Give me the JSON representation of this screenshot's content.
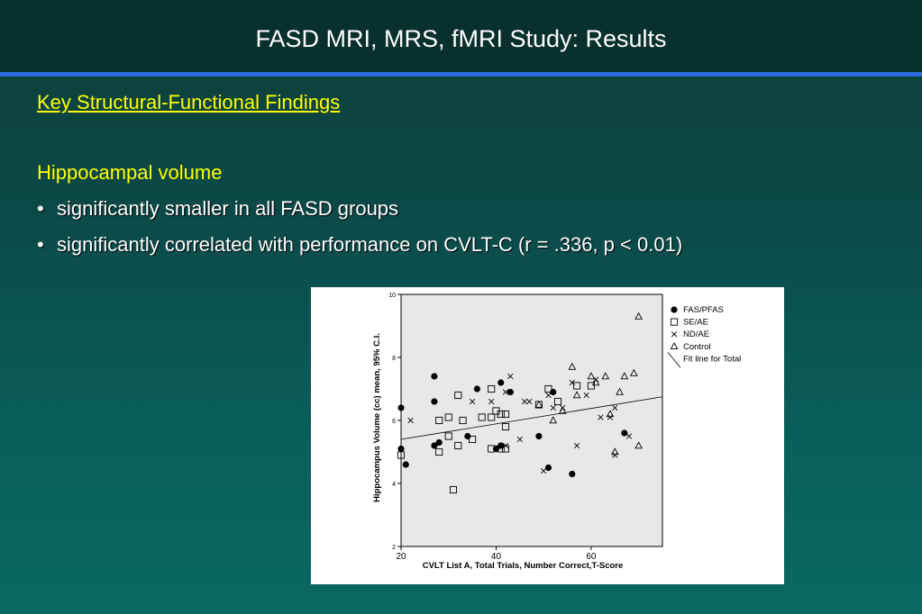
{
  "slide": {
    "title": "FASD MRI, MRS, fMRI Study: Results",
    "subheading": "Key Structural-Functional Findings",
    "section_title": "Hippocampal volume",
    "bullets": [
      "significantly smaller in all FASD groups",
      "significantly correlated with performance on CVLT-C   (r = .336, p < 0.01)"
    ],
    "bullet_char": "•"
  },
  "chart_data": {
    "type": "scatter",
    "xlabel": "CVLT List A, Total Trials, Number Correct,T-Score",
    "ylabel": "Hippocampus Volume (cc) mean, 95% C.I.",
    "xlim": [
      20,
      75
    ],
    "ylim": [
      2,
      10
    ],
    "xticks": [
      20,
      40,
      60
    ],
    "yticks": [
      2,
      4,
      6,
      8,
      10
    ],
    "grid": false,
    "legend_position": "right",
    "fit_line": {
      "name": "Fit line for Total",
      "x": [
        20,
        75
      ],
      "y": [
        5.4,
        6.75
      ]
    },
    "series": [
      {
        "name": "FAS/PFAS",
        "marker": "filled-circle",
        "points": [
          [
            20,
            6.4
          ],
          [
            20,
            5.1
          ],
          [
            21,
            4.6
          ],
          [
            27,
            7.4
          ],
          [
            27,
            6.6
          ],
          [
            27,
            5.2
          ],
          [
            28,
            5.3
          ],
          [
            34,
            5.5
          ],
          [
            36,
            7.0
          ],
          [
            40,
            5.1
          ],
          [
            41,
            5.2
          ],
          [
            41,
            7.2
          ],
          [
            43,
            6.9
          ],
          [
            49,
            5.5
          ],
          [
            51,
            4.5
          ],
          [
            52,
            6.9
          ],
          [
            56,
            4.3
          ],
          [
            67,
            5.6
          ]
        ]
      },
      {
        "name": "SE/AE",
        "marker": "open-square",
        "points": [
          [
            20,
            4.9
          ],
          [
            28,
            6.0
          ],
          [
            28,
            5.0
          ],
          [
            30,
            6.1
          ],
          [
            30,
            5.5
          ],
          [
            31,
            3.8
          ],
          [
            32,
            6.8
          ],
          [
            32,
            5.2
          ],
          [
            33,
            6.0
          ],
          [
            35,
            5.4
          ],
          [
            37,
            6.1
          ],
          [
            39,
            6.1
          ],
          [
            39,
            7.0
          ],
          [
            39,
            5.1
          ],
          [
            40,
            6.3
          ],
          [
            41,
            6.2
          ],
          [
            41,
            5.1
          ],
          [
            42,
            5.8
          ],
          [
            42,
            6.2
          ],
          [
            42,
            5.1
          ],
          [
            49,
            6.5
          ],
          [
            51,
            7.0
          ],
          [
            53,
            6.6
          ],
          [
            57,
            7.1
          ],
          [
            60,
            7.1
          ]
        ]
      },
      {
        "name": "ND/AE",
        "marker": "x",
        "points": [
          [
            22,
            6.0
          ],
          [
            35,
            6.6
          ],
          [
            39,
            6.6
          ],
          [
            42,
            6.9
          ],
          [
            42,
            5.2
          ],
          [
            43,
            7.4
          ],
          [
            45,
            5.4
          ],
          [
            46,
            6.6
          ],
          [
            47,
            6.6
          ],
          [
            50,
            4.4
          ],
          [
            51,
            6.8
          ],
          [
            52,
            6.4
          ],
          [
            54,
            6.4
          ],
          [
            56,
            7.2
          ],
          [
            57,
            5.2
          ],
          [
            59,
            6.8
          ],
          [
            61,
            7.3
          ],
          [
            62,
            6.1
          ],
          [
            64,
            6.1
          ],
          [
            65,
            6.4
          ],
          [
            65,
            4.9
          ],
          [
            68,
            5.5
          ]
        ]
      },
      {
        "name": "Control",
        "marker": "open-triangle",
        "points": [
          [
            49,
            6.5
          ],
          [
            52,
            6.0
          ],
          [
            54,
            6.3
          ],
          [
            56,
            7.7
          ],
          [
            57,
            6.8
          ],
          [
            60,
            7.4
          ],
          [
            61,
            7.2
          ],
          [
            63,
            7.4
          ],
          [
            64,
            6.2
          ],
          [
            66,
            6.9
          ],
          [
            67,
            7.4
          ],
          [
            69,
            7.5
          ],
          [
            70,
            9.3
          ],
          [
            70,
            5.2
          ],
          [
            65,
            5.0
          ]
        ]
      }
    ]
  }
}
